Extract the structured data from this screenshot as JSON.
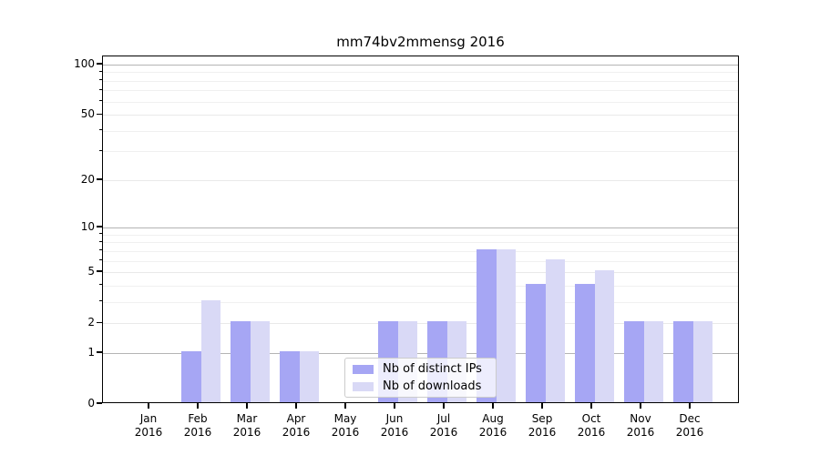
{
  "chart_data": {
    "type": "bar",
    "title": "mm74bv2mmensg 2016",
    "categories": [
      "Jan",
      "Feb",
      "Mar",
      "Apr",
      "May",
      "Jun",
      "Jul",
      "Aug",
      "Sep",
      "Oct",
      "Nov",
      "Dec"
    ],
    "x_year": "2016",
    "series": [
      {
        "name": "Nb of distinct IPs",
        "color": "#a6a6f4",
        "values": [
          0,
          1,
          2,
          1,
          0,
          2,
          2,
          7,
          4,
          4,
          2,
          2
        ]
      },
      {
        "name": "Nb of downloads",
        "color": "#d9d9f6",
        "values": [
          0,
          3,
          2,
          1,
          0,
          2,
          2,
          7,
          6,
          5,
          2,
          2
        ]
      }
    ],
    "y_scale": "log10(1+x)",
    "y_major_ticks": [
      0,
      1,
      2,
      5,
      10,
      20,
      50,
      100
    ],
    "y_minor_ticks": [
      3,
      4,
      6,
      7,
      8,
      9,
      30,
      40,
      60,
      70,
      80,
      90
    ],
    "y_decade_lines": [
      1,
      10,
      100
    ],
    "ylim": [
      0,
      110
    ],
    "grid": true,
    "legend": {
      "position": "lower center"
    },
    "colors": {
      "grid_decade": "#b4b4b4",
      "grid_light": "#e9e9e9",
      "grid_minor": "#f0f0f0",
      "frame": "#000000",
      "background": "#ffffff",
      "legend_border": "#cccccc"
    }
  }
}
